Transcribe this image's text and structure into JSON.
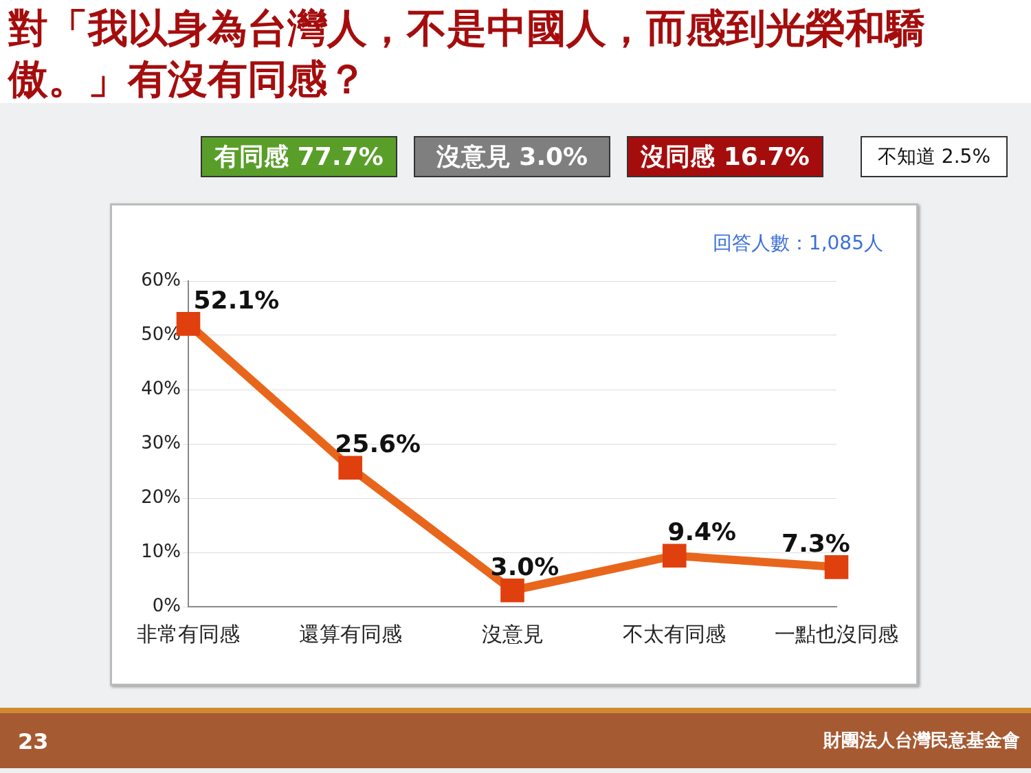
{
  "chart_data": {
    "type": "line",
    "title": "對「我以身為台灣人，不是中國人，而感到光榮和驕傲。」有沒有同感？",
    "categories": [
      "非常有同感",
      "還算有同感",
      "沒意見",
      "不太有同感",
      "一點也沒同感"
    ],
    "values": [
      52.1,
      25.6,
      3.0,
      9.4,
      7.3
    ],
    "color": "#e8661c",
    "marker": "square",
    "value_labels": [
      "52.1%",
      "25.6%",
      "3.0%",
      "9.4%",
      "7.3%"
    ],
    "ylim": [
      0,
      60
    ],
    "yticks": [
      {
        "value": 0,
        "label": "0%"
      },
      {
        "value": 10,
        "label": "10%"
      },
      {
        "value": 20,
        "label": "20%"
      },
      {
        "value": 30,
        "label": "30%"
      },
      {
        "value": 40,
        "label": "40%"
      },
      {
        "value": 50,
        "label": "50%"
      },
      {
        "value": 60,
        "label": "60%"
      }
    ],
    "grid": "y",
    "legend": false,
    "annotations": [
      "有同感 77.7%",
      "沒意見 3.0%",
      "沒同感 16.7%",
      "不知道 2.5%",
      "回答人數：1,085人",
      "23",
      "財團法人台灣民意基金會"
    ]
  }
}
